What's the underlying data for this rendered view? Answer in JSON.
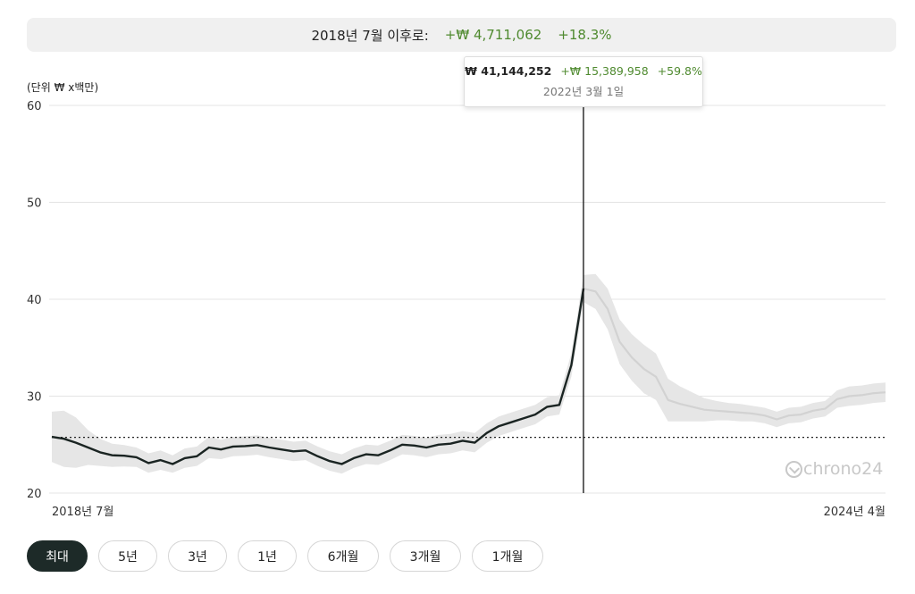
{
  "summary": {
    "label": "2018년 7월 이후로:",
    "change": "+₩ 4,711,062",
    "percent": "+18.3%"
  },
  "tooltip": {
    "value": "₩ 41,144,252",
    "change": "+₩ 15,389,958",
    "percent": "+59.8%",
    "date": "2022년 3월 1일"
  },
  "watermark": "chrono24",
  "range_buttons": [
    {
      "label": "최대",
      "active": true
    },
    {
      "label": "5년",
      "active": false
    },
    {
      "label": "3년",
      "active": false
    },
    {
      "label": "1년",
      "active": false
    },
    {
      "label": "6개월",
      "active": false
    },
    {
      "label": "3개월",
      "active": false
    },
    {
      "label": "1개월",
      "active": false
    }
  ],
  "colors": {
    "line": "#1a2422",
    "band": "#e6e6e6",
    "grid": "#e4e4e4",
    "positive": "#4f8a2f",
    "active_button": "#1d2a28"
  },
  "chart_data": {
    "type": "line",
    "ylabel": "(단위 ₩ x백만)",
    "ylim": [
      20,
      60
    ],
    "yticks": [
      20,
      30,
      40,
      50,
      60
    ],
    "xlim": [
      "2018-07",
      "2024-04"
    ],
    "x_tick_labels": [
      "2018년 7월",
      "2024년 4월"
    ],
    "baseline": 25.75,
    "highlight_date": "2022-03",
    "grid": true,
    "series": [
      {
        "values": [
          {
            "x": "2018-07",
            "y": 25.8
          },
          {
            "x": "2018-08",
            "y": 25.6
          },
          {
            "x": "2018-09",
            "y": 25.2
          },
          {
            "x": "2018-10",
            "y": 24.7
          },
          {
            "x": "2018-11",
            "y": 24.2
          },
          {
            "x": "2018-12",
            "y": 23.9
          },
          {
            "x": "2019-01",
            "y": 23.85
          },
          {
            "x": "2019-02",
            "y": 23.7
          },
          {
            "x": "2019-03",
            "y": 23.1
          },
          {
            "x": "2019-04",
            "y": 23.4
          },
          {
            "x": "2019-05",
            "y": 23.0
          },
          {
            "x": "2019-06",
            "y": 23.6
          },
          {
            "x": "2019-07",
            "y": 23.8
          },
          {
            "x": "2019-08",
            "y": 24.7
          },
          {
            "x": "2019-09",
            "y": 24.5
          },
          {
            "x": "2019-10",
            "y": 24.8
          },
          {
            "x": "2019-11",
            "y": 24.85
          },
          {
            "x": "2019-12",
            "y": 24.95
          },
          {
            "x": "2020-01",
            "y": 24.7
          },
          {
            "x": "2020-02",
            "y": 24.5
          },
          {
            "x": "2020-03",
            "y": 24.3
          },
          {
            "x": "2020-04",
            "y": 24.4
          },
          {
            "x": "2020-05",
            "y": 23.8
          },
          {
            "x": "2020-06",
            "y": 23.3
          },
          {
            "x": "2020-07",
            "y": 23.0
          },
          {
            "x": "2020-08",
            "y": 23.6
          },
          {
            "x": "2020-09",
            "y": 24.0
          },
          {
            "x": "2020-10",
            "y": 23.9
          },
          {
            "x": "2020-11",
            "y": 24.4
          },
          {
            "x": "2020-12",
            "y": 25.0
          },
          {
            "x": "2021-01",
            "y": 24.9
          },
          {
            "x": "2021-02",
            "y": 24.7
          },
          {
            "x": "2021-03",
            "y": 25.0
          },
          {
            "x": "2021-04",
            "y": 25.1
          },
          {
            "x": "2021-05",
            "y": 25.4
          },
          {
            "x": "2021-06",
            "y": 25.2
          },
          {
            "x": "2021-07",
            "y": 26.2
          },
          {
            "x": "2021-08",
            "y": 26.9
          },
          {
            "x": "2021-09",
            "y": 27.3
          },
          {
            "x": "2021-10",
            "y": 27.7
          },
          {
            "x": "2021-11",
            "y": 28.1
          },
          {
            "x": "2021-12",
            "y": 28.9
          },
          {
            "x": "2022-01",
            "y": 29.1
          },
          {
            "x": "2022-02",
            "y": 33.2
          },
          {
            "x": "2022-03",
            "y": 41.1
          },
          {
            "x": "2022-04",
            "y": 40.8
          },
          {
            "x": "2022-05",
            "y": 39.0
          },
          {
            "x": "2022-06",
            "y": 35.6
          },
          {
            "x": "2022-07",
            "y": 34.0
          },
          {
            "x": "2022-08",
            "y": 32.8
          },
          {
            "x": "2022-09",
            "y": 32.0
          },
          {
            "x": "2022-10",
            "y": 29.6
          },
          {
            "x": "2022-11",
            "y": 29.2
          },
          {
            "x": "2022-12",
            "y": 28.9
          },
          {
            "x": "2023-01",
            "y": 28.6
          },
          {
            "x": "2023-02",
            "y": 28.5
          },
          {
            "x": "2023-03",
            "y": 28.4
          },
          {
            "x": "2023-04",
            "y": 28.3
          },
          {
            "x": "2023-05",
            "y": 28.2
          },
          {
            "x": "2023-06",
            "y": 28.0
          },
          {
            "x": "2023-07",
            "y": 27.6
          },
          {
            "x": "2023-08",
            "y": 28.0
          },
          {
            "x": "2023-09",
            "y": 28.1
          },
          {
            "x": "2023-10",
            "y": 28.5
          },
          {
            "x": "2023-11",
            "y": 28.7
          },
          {
            "x": "2023-12",
            "y": 29.7
          },
          {
            "x": "2024-01",
            "y": 30.0
          },
          {
            "x": "2024-02",
            "y": 30.1
          },
          {
            "x": "2024-03",
            "y": 30.3
          },
          {
            "x": "2024-04",
            "y": 30.4
          }
        ],
        "band_width": [
          2.6,
          2.9,
          2.6,
          1.8,
          1.4,
          1.2,
          1.1,
          1.0,
          1.0,
          1.0,
          0.9,
          1.0,
          1.0,
          1.1,
          1.0,
          1.0,
          1.0,
          1.0,
          1.0,
          1.0,
          1.0,
          1.0,
          1.0,
          1.0,
          1.0,
          1.0,
          1.0,
          1.0,
          1.0,
          1.0,
          1.0,
          1.0,
          1.0,
          1.0,
          1.0,
          1.0,
          1.0,
          1.0,
          1.0,
          1.0,
          1.0,
          1.0,
          1.0,
          1.2,
          1.4,
          1.8,
          2.1,
          2.3,
          2.4,
          2.5,
          2.4,
          2.2,
          1.8,
          1.5,
          1.2,
          1.0,
          0.9,
          0.9,
          0.8,
          0.8,
          0.8,
          0.8,
          0.8,
          0.8,
          0.8,
          0.9,
          1.0,
          1.0,
          1.0,
          1.0
        ]
      }
    ]
  }
}
